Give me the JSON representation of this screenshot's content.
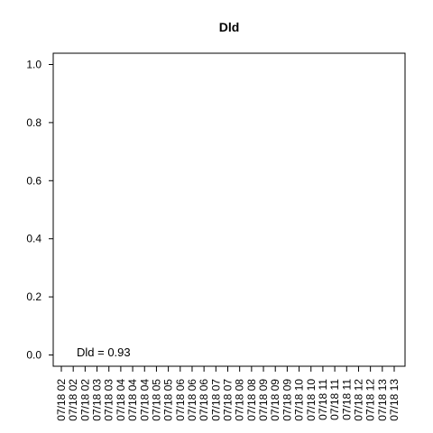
{
  "chart_data": {
    "type": "line",
    "title": "Dld",
    "xlabel": "",
    "ylabel": "",
    "ylim": [
      0,
      1
    ],
    "y_ticks": [
      "0.0",
      "0.2",
      "0.4",
      "0.6",
      "0.8",
      "1.0"
    ],
    "y_tick_values": [
      0,
      0.2,
      0.4,
      0.6,
      0.8,
      1.0
    ],
    "x_tick_labels": [
      "07/18 02",
      "07/18 02",
      "07/18 02",
      "07/18 03",
      "07/18 03",
      "07/18 04",
      "07/18 04",
      "07/18 04",
      "07/18 05",
      "07/18 05",
      "07/18 06",
      "07/18 06",
      "07/18 06",
      "07/18 07",
      "07/18 07",
      "07/18 08",
      "07/18 08",
      "07/18 09",
      "07/18 09",
      "07/18 09",
      "07/18 10",
      "07/18 10",
      "07/18 11",
      "07/18 11",
      "07/18 11",
      "07/18 12",
      "07/18 12",
      "07/18 13",
      "07/18 13"
    ],
    "series": [],
    "annotation": "Dld = 0.93",
    "grid": false,
    "legend": "none"
  }
}
